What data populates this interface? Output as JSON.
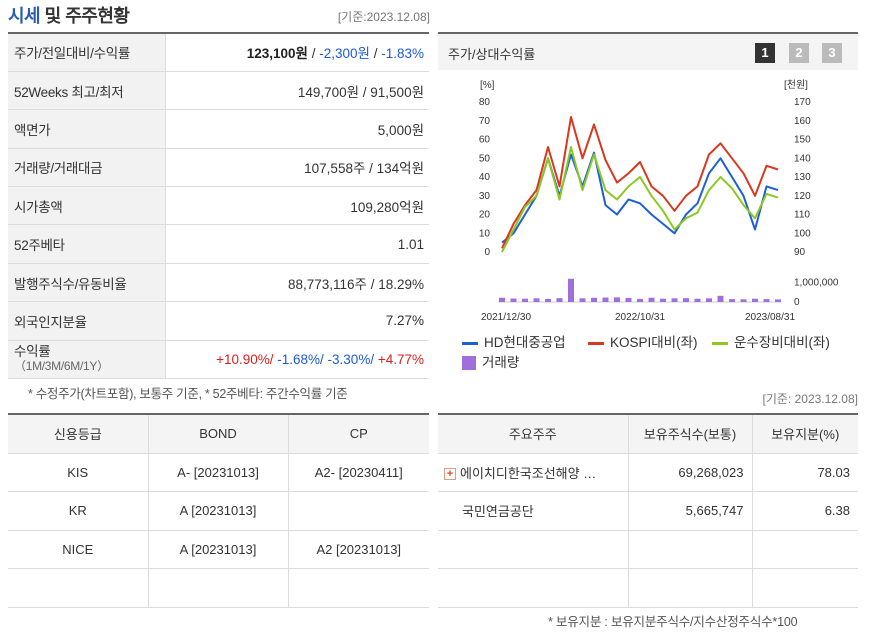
{
  "header": {
    "title_part1": "시세",
    "title_part2": "및 주주현황",
    "date": "[기준:2023.12.08]"
  },
  "quote_table": {
    "rows": [
      {
        "label": "주가/전일대비/수익률"
      },
      {
        "label": "52Weeks 최고/최저",
        "value": "149,700원 / 91,500원"
      },
      {
        "label": "액면가",
        "value": "5,000원"
      },
      {
        "label": "거래량/거래대금",
        "value": "107,558주 / 134억원"
      },
      {
        "label": "시가총액",
        "value": "109,280억원"
      },
      {
        "label": "52주베타",
        "value": "1.01"
      },
      {
        "label": "발행주식수/유동비율",
        "value": "88,773,116주 / 18.29%"
      },
      {
        "label": "외국인지분율",
        "value": "7.27%"
      },
      {
        "label": "수익률",
        "sublabel": "（1M/3M/6M/1Y）"
      }
    ],
    "price": "123,100원",
    "price_sep1": " / ",
    "change": "-2,300원",
    "price_sep2": " / ",
    "change_rate": "-1.83%",
    "returns": {
      "m1": "+10.90%/",
      "m3": " -1.68%/",
      "m6": " -3.30%/",
      "y1": " +4.77%"
    }
  },
  "note1": "* 수정주가(차트포함), 보통주 기준, * 52주베타: 주간수익률 기준",
  "chart_header": {
    "label": "주가/상대수익률",
    "pages": [
      "1",
      "2",
      "3"
    ]
  },
  "chart_data": {
    "type": "line",
    "x_tick_labels": [
      "2021/12/30",
      "2022/10/31",
      "2023/08/31"
    ],
    "left_axis": {
      "unit": "[%]",
      "ticks": [
        "80",
        "70",
        "60",
        "50",
        "40",
        "30",
        "20",
        "10",
        "0"
      ],
      "ylim": [
        0,
        80
      ]
    },
    "right_axis": {
      "unit": "[천원]",
      "ticks": [
        "170",
        "160",
        "150",
        "140",
        "130",
        "120",
        "110",
        "100",
        "90"
      ],
      "ylim": [
        90,
        170
      ]
    },
    "volume_axis": {
      "ticks": [
        "1,000,000",
        "0"
      ],
      "ylim": [
        0,
        1500000
      ]
    },
    "series": [
      {
        "name": "HD현대중공업",
        "color": "#1f5fd6",
        "values": [
          5,
          10,
          20,
          30,
          50,
          30,
          52,
          35,
          53,
          25,
          20,
          28,
          26,
          20,
          15,
          10,
          20,
          26,
          42,
          50,
          40,
          30,
          12,
          35,
          33
        ]
      },
      {
        "name": "KOSPI대비(좌)",
        "color": "#d9381e",
        "values": [
          2,
          15,
          25,
          33,
          56,
          35,
          72,
          50,
          68,
          49,
          37,
          42,
          48,
          35,
          30,
          22,
          30,
          35,
          52,
          58,
          50,
          42,
          30,
          46,
          44
        ]
      },
      {
        "name": "운수장비대비(좌)",
        "color": "#8cc825",
        "values": [
          0,
          12,
          24,
          30,
          50,
          28,
          56,
          33,
          52,
          33,
          28,
          35,
          40,
          30,
          22,
          12,
          18,
          21,
          33,
          40,
          34,
          25,
          18,
          31,
          29
        ]
      },
      {
        "name": "거래량",
        "color": "#a06fdc",
        "values": [
          220000,
          180000,
          170000,
          190000,
          160000,
          200000,
          1200000,
          190000,
          220000,
          230000,
          240000,
          210000,
          160000,
          220000,
          170000,
          190000,
          200000,
          170000,
          190000,
          320000,
          150000,
          140000,
          170000,
          150000,
          130000
        ]
      }
    ]
  },
  "date2": "[기준: 2023.12.08]",
  "credit_table": {
    "headers": [
      "신용등급",
      "BOND",
      "CP"
    ],
    "rows": [
      {
        "agency": "KIS",
        "bond": "A-  [20231013]",
        "cp": "A2-  [20230411]"
      },
      {
        "agency": "KR",
        "bond": "A  [20231013]",
        "cp": ""
      },
      {
        "agency": "NICE",
        "bond": "A  [20231013]",
        "cp": "A2  [20231013]"
      }
    ]
  },
  "holders_table": {
    "headers": [
      "주요주주",
      "보유주식수(보통)",
      "보유지분(%)"
    ],
    "rows": [
      {
        "name": "에이치디한국조선해양 …",
        "shares": "69,268,023",
        "pct": "78.03",
        "icon": "plus-icon"
      },
      {
        "name": "국민연금공단",
        "shares": "5,665,747",
        "pct": "6.38"
      }
    ]
  },
  "note2": "* 보유지분 : 보유지분주식수/지수산정주식수*100"
}
